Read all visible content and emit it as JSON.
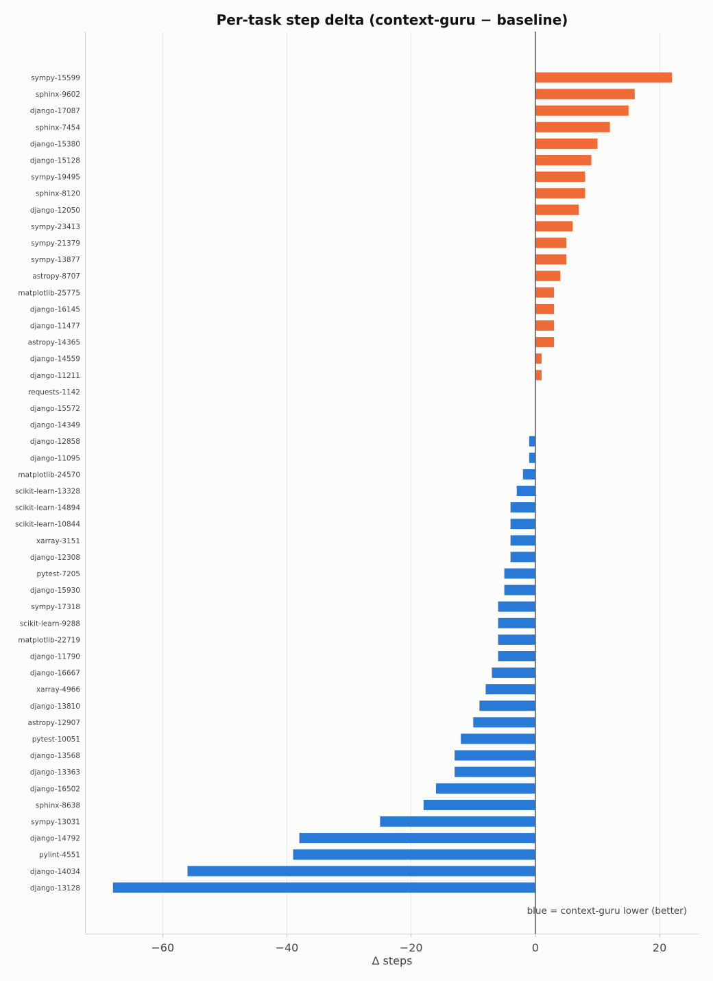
{
  "chart_data": {
    "type": "bar",
    "orientation": "horizontal",
    "title": "Per-task step delta (context-guru − baseline)",
    "xlabel": "Δ steps",
    "ylabel": "",
    "xlim": [
      -72.5,
      26.5
    ],
    "xticks": [
      -60,
      -40,
      -20,
      0,
      20
    ],
    "xtick_labels": [
      "−60",
      "−40",
      "−20",
      "0",
      "20"
    ],
    "grid": "vertical",
    "annotation": "blue = context-guru lower (better)",
    "colors": {
      "positive": "#ee6b37",
      "negative": "#2979d6",
      "zero_line": "#555555"
    },
    "categories": [
      "sympy-15599",
      "sphinx-9602",
      "django-17087",
      "sphinx-7454",
      "django-15380",
      "django-15128",
      "sympy-19495",
      "sphinx-8120",
      "django-12050",
      "sympy-23413",
      "sympy-21379",
      "sympy-13877",
      "astropy-8707",
      "matplotlib-25775",
      "django-16145",
      "django-11477",
      "astropy-14365",
      "django-14559",
      "django-11211",
      "requests-1142",
      "django-15572",
      "django-14349",
      "django-12858",
      "django-11095",
      "matplotlib-24570",
      "scikit-learn-13328",
      "scikit-learn-14894",
      "scikit-learn-10844",
      "xarray-3151",
      "django-12308",
      "pytest-7205",
      "django-15930",
      "sympy-17318",
      "scikit-learn-9288",
      "matplotlib-22719",
      "django-11790",
      "django-16667",
      "xarray-4966",
      "django-13810",
      "astropy-12907",
      "pytest-10051",
      "django-13568",
      "django-13363",
      "django-16502",
      "sphinx-8638",
      "sympy-13031",
      "django-14792",
      "pylint-4551",
      "django-14034",
      "django-13128"
    ],
    "values": [
      22,
      16,
      15,
      12,
      10,
      9,
      8,
      8,
      7,
      6,
      5,
      5,
      4,
      3,
      3,
      3,
      3,
      1,
      1,
      0,
      0,
      0,
      -1,
      -1,
      -2,
      -3,
      -4,
      -4,
      -4,
      -4,
      -5,
      -5,
      -6,
      -6,
      -6,
      -6,
      -7,
      -8,
      -9,
      -10,
      -12,
      -13,
      -13,
      -16,
      -18,
      -25,
      -38,
      -39,
      -56,
      -68
    ]
  }
}
